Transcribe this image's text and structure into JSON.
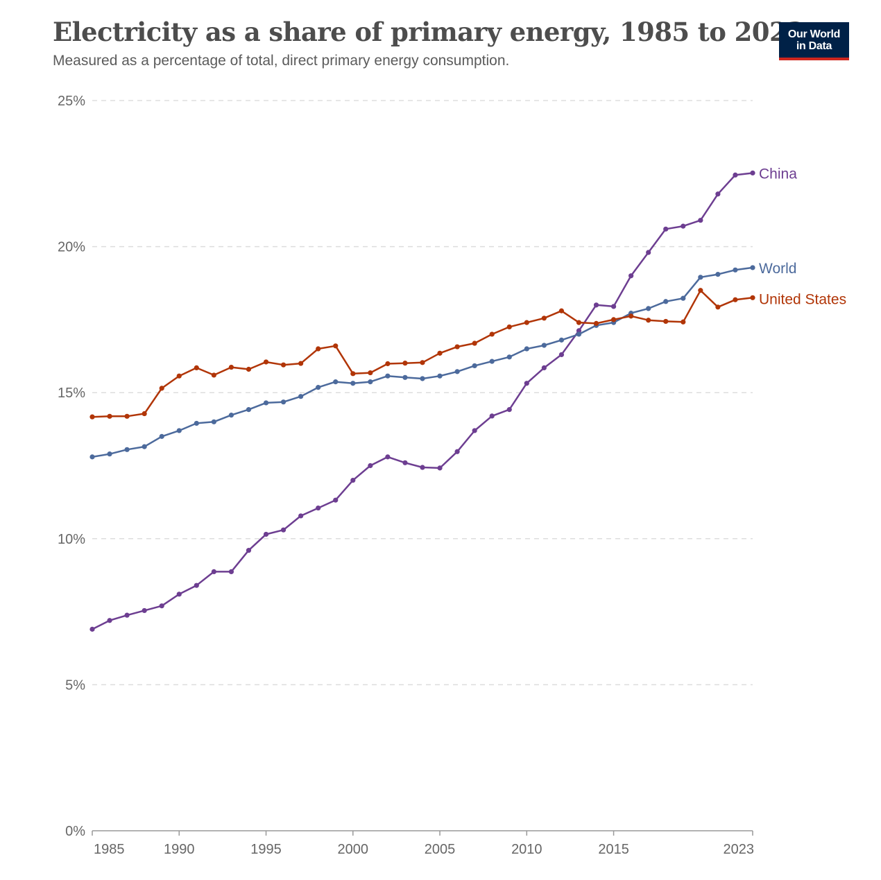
{
  "title": "Electricity as a share of primary energy, 1985 to 2023",
  "subtitle": "Measured as a percentage of total, direct primary energy consumption.",
  "logo": {
    "line1": "Our World",
    "line2": "in Data"
  },
  "chart_data": {
    "type": "line",
    "title": "Electricity as a share of primary energy, 1985 to 2023",
    "subtitle": "Measured as a percentage of total, direct primary energy consumption.",
    "xlabel": "",
    "ylabel": "",
    "x": [
      1985,
      1986,
      1987,
      1988,
      1989,
      1990,
      1991,
      1992,
      1993,
      1994,
      1995,
      1996,
      1997,
      1998,
      1999,
      2000,
      2001,
      2002,
      2003,
      2004,
      2005,
      2006,
      2007,
      2008,
      2009,
      2010,
      2011,
      2012,
      2013,
      2014,
      2015,
      2016,
      2017,
      2018,
      2019,
      2020,
      2021,
      2022,
      2023
    ],
    "xlim": [
      1985,
      2023
    ],
    "ylim": [
      0,
      25
    ],
    "y_ticks": [
      0,
      5,
      10,
      15,
      20,
      25
    ],
    "y_tick_labels": [
      "0%",
      "5%",
      "10%",
      "15%",
      "20%",
      "25%"
    ],
    "x_ticks": [
      1985,
      1990,
      1995,
      2000,
      2005,
      2010,
      2015,
      2023
    ],
    "x_tick_labels": [
      "1985",
      "1990",
      "1995",
      "2000",
      "2005",
      "2010",
      "2015",
      "2023"
    ],
    "grid": "horizontal dashed",
    "legend": "inline labels at line ends (right)",
    "series": [
      {
        "name": "China",
        "color": "#6d3e91",
        "values": [
          6.9,
          7.2,
          7.38,
          7.54,
          7.7,
          8.1,
          8.4,
          8.87,
          8.87,
          9.6,
          10.15,
          10.3,
          10.78,
          11.05,
          11.32,
          12.0,
          12.5,
          12.8,
          12.6,
          12.44,
          12.42,
          12.98,
          13.7,
          14.2,
          14.42,
          15.32,
          15.85,
          16.3,
          17.12,
          18.0,
          17.95,
          19.0,
          19.8,
          20.6,
          20.7,
          20.9,
          21.8,
          22.45,
          22.52
        ],
        "label_value": 22.5
      },
      {
        "name": "World",
        "color": "#4c6a9c",
        "values": [
          12.8,
          12.9,
          13.05,
          13.15,
          13.5,
          13.7,
          13.95,
          14.0,
          14.23,
          14.42,
          14.65,
          14.68,
          14.87,
          15.18,
          15.37,
          15.32,
          15.37,
          15.57,
          15.52,
          15.48,
          15.57,
          15.72,
          15.92,
          16.07,
          16.22,
          16.5,
          16.62,
          16.8,
          17.0,
          17.3,
          17.4,
          17.72,
          17.88,
          18.12,
          18.23,
          18.95,
          19.05,
          19.2,
          19.28
        ],
        "label_value": 19.25
      },
      {
        "name": "United States",
        "color": "#b13507",
        "values": [
          14.17,
          14.19,
          14.19,
          14.28,
          15.15,
          15.57,
          15.85,
          15.6,
          15.87,
          15.8,
          16.05,
          15.95,
          16.0,
          16.5,
          16.6,
          15.65,
          15.68,
          15.99,
          16.01,
          16.03,
          16.35,
          16.57,
          16.69,
          17.0,
          17.25,
          17.4,
          17.55,
          17.8,
          17.4,
          17.37,
          17.5,
          17.62,
          17.48,
          17.44,
          17.42,
          18.5,
          17.93,
          18.18,
          18.25
        ],
        "label_value": 18.2
      }
    ]
  }
}
